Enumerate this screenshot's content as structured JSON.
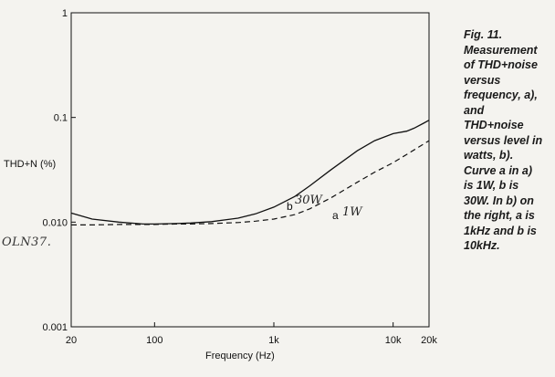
{
  "chart_data": {
    "type": "line",
    "xlabel": "Frequency (Hz)",
    "ylabel": "THD+N (%)",
    "x_scale": "log",
    "y_scale": "log",
    "xlim": [
      20,
      20000
    ],
    "ylim": [
      0.001,
      1
    ],
    "x_ticks": [
      {
        "value": 20,
        "label": "20"
      },
      {
        "value": 100,
        "label": "100"
      },
      {
        "value": 1000,
        "label": "1k"
      },
      {
        "value": 10000,
        "label": "10k"
      },
      {
        "value": 20000,
        "label": "20k"
      }
    ],
    "y_ticks": [
      {
        "value": 1,
        "label": "1"
      },
      {
        "value": 0.1,
        "label": "0.1"
      },
      {
        "value": 0.01,
        "label": "0.010"
      },
      {
        "value": 0.001,
        "label": "0.001"
      }
    ],
    "grid": false,
    "series": [
      {
        "name": "b",
        "handwritten": "30W",
        "style": "solid",
        "x": [
          20,
          30,
          50,
          80,
          100,
          150,
          200,
          300,
          500,
          700,
          1000,
          1500,
          2000,
          3000,
          5000,
          7000,
          10000,
          13000,
          15000,
          18000,
          20000
        ],
        "y": [
          0.0122,
          0.0107,
          0.01,
          0.0096,
          0.0096,
          0.0097,
          0.0098,
          0.0101,
          0.0109,
          0.012,
          0.0139,
          0.0176,
          0.0222,
          0.0315,
          0.048,
          0.06,
          0.07,
          0.074,
          0.079,
          0.088,
          0.094
        ]
      },
      {
        "name": "a",
        "handwritten": "1W",
        "style": "dashed",
        "x": [
          20,
          30,
          50,
          80,
          100,
          150,
          200,
          300,
          500,
          700,
          1000,
          1500,
          2000,
          3000,
          5000,
          7000,
          10000,
          15000,
          20000
        ],
        "y": [
          0.0094,
          0.0094,
          0.0095,
          0.0095,
          0.0095,
          0.0096,
          0.0096,
          0.0097,
          0.0099,
          0.0102,
          0.0107,
          0.0118,
          0.0134,
          0.017,
          0.024,
          0.03,
          0.037,
          0.049,
          0.06
        ]
      }
    ]
  },
  "hand_note": "OLN37.",
  "caption": {
    "lines": [
      "Fig. 11.",
      "Measurement",
      "of THD+noise",
      "versus",
      "frequency, a),",
      "and",
      "THD+noise",
      "versus level in",
      "watts, b).",
      "Curve a in a)",
      "is 1W, b is",
      "30W. In b) on",
      "the right, a is",
      "1kHz and b is",
      "10kHz."
    ]
  }
}
